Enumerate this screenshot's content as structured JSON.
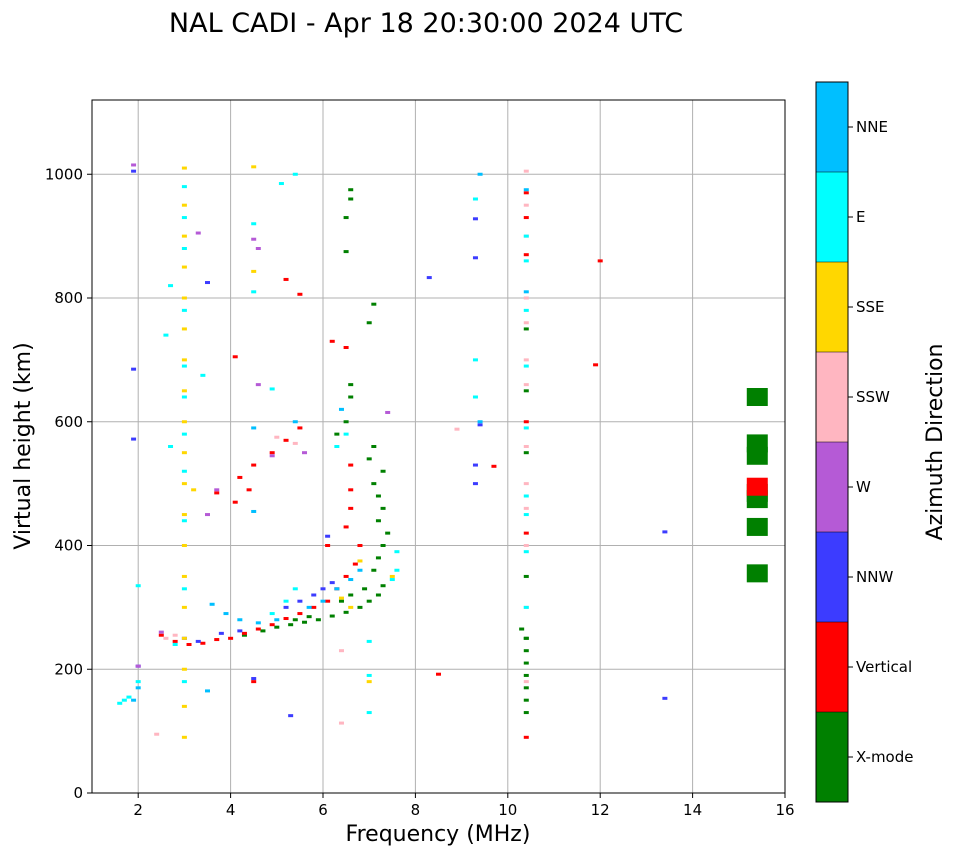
{
  "chart_data": {
    "type": "scatter",
    "title": "NAL CADI - Apr 18 20:30:00 2024 UTC",
    "xlabel": "Frequency (MHz)",
    "ylabel": "Virtual height (km)",
    "xlim": [
      1,
      16
    ],
    "ylim": [
      0,
      1120
    ],
    "xticks": [
      2,
      4,
      6,
      8,
      10,
      12,
      14,
      16
    ],
    "yticks": [
      0,
      200,
      400,
      600,
      800,
      1000
    ],
    "grid": true,
    "colorbar": {
      "label": "Azimuth Direction",
      "categories": [
        {
          "name": "X-mode",
          "color": "#008000"
        },
        {
          "name": "Vertical",
          "color": "#ff0000"
        },
        {
          "name": "NNW",
          "color": "#3c3cff"
        },
        {
          "name": "W",
          "color": "#b55ad6"
        },
        {
          "name": "SSW",
          "color": "#ffb6c1"
        },
        {
          "name": "SSE",
          "color": "#ffd700"
        },
        {
          "name": "E",
          "color": "#00ffff"
        },
        {
          "name": "NNE",
          "color": "#00bfff"
        }
      ]
    },
    "series": [
      {
        "name": "X-mode",
        "points": [
          [
            4.3,
            255
          ],
          [
            4.7,
            262
          ],
          [
            5.0,
            268
          ],
          [
            5.3,
            272
          ],
          [
            5.6,
            276
          ],
          [
            5.9,
            280
          ],
          [
            6.2,
            286
          ],
          [
            6.5,
            292
          ],
          [
            6.8,
            300
          ],
          [
            7.0,
            310
          ],
          [
            7.2,
            320
          ],
          [
            7.3,
            335
          ],
          [
            6.9,
            330
          ],
          [
            6.6,
            320
          ],
          [
            7.1,
            360
          ],
          [
            7.2,
            380
          ],
          [
            7.3,
            400
          ],
          [
            7.4,
            420
          ],
          [
            7.2,
            440
          ],
          [
            7.3,
            460
          ],
          [
            7.2,
            480
          ],
          [
            7.1,
            500
          ],
          [
            7.3,
            520
          ],
          [
            7.0,
            540
          ],
          [
            7.1,
            560
          ],
          [
            6.5,
            600
          ],
          [
            6.6,
            640
          ],
          [
            6.6,
            660
          ],
          [
            6.3,
            580
          ],
          [
            7.0,
            760
          ],
          [
            7.1,
            790
          ],
          [
            6.5,
            930
          ],
          [
            6.6,
            960
          ],
          [
            6.6,
            975
          ],
          [
            6.5,
            875
          ],
          [
            10.3,
            265
          ],
          [
            10.4,
            250
          ],
          [
            10.4,
            230
          ],
          [
            10.4,
            210
          ],
          [
            10.4,
            190
          ],
          [
            10.4,
            170
          ],
          [
            10.4,
            150
          ],
          [
            10.4,
            130
          ],
          [
            10.4,
            250
          ],
          [
            10.4,
            350
          ],
          [
            10.4,
            550
          ],
          [
            10.4,
            650
          ],
          [
            10.4,
            750
          ],
          [
            5.7,
            285
          ],
          [
            5.4,
            280
          ],
          [
            6.4,
            310
          ],
          [
            15.4,
            355
          ],
          [
            15.4,
            430
          ],
          [
            15.4,
            475
          ],
          [
            15.4,
            485
          ],
          [
            15.4,
            545
          ],
          [
            15.4,
            565
          ],
          [
            15.4,
            640
          ]
        ]
      },
      {
        "name": "Vertical",
        "points": [
          [
            2.5,
            255
          ],
          [
            2.8,
            245
          ],
          [
            3.1,
            240
          ],
          [
            3.4,
            242
          ],
          [
            3.7,
            248
          ],
          [
            4.0,
            250
          ],
          [
            4.3,
            258
          ],
          [
            4.6,
            265
          ],
          [
            4.9,
            272
          ],
          [
            5.2,
            282
          ],
          [
            5.5,
            290
          ],
          [
            5.8,
            300
          ],
          [
            6.1,
            310
          ],
          [
            6.3,
            330
          ],
          [
            6.5,
            350
          ],
          [
            6.7,
            370
          ],
          [
            6.8,
            400
          ],
          [
            6.5,
            430
          ],
          [
            6.6,
            460
          ],
          [
            6.6,
            490
          ],
          [
            6.6,
            530
          ],
          [
            6.1,
            400
          ],
          [
            5.5,
            590
          ],
          [
            5.2,
            570
          ],
          [
            4.9,
            550
          ],
          [
            4.5,
            530
          ],
          [
            4.2,
            510
          ],
          [
            4.1,
            470
          ],
          [
            3.7,
            485
          ],
          [
            4.4,
            490
          ],
          [
            6.5,
            720
          ],
          [
            6.2,
            730
          ],
          [
            4.1,
            705
          ],
          [
            4.5,
            180
          ],
          [
            8.5,
            192
          ],
          [
            9.7,
            528
          ],
          [
            10.4,
            90
          ],
          [
            10.4,
            420
          ],
          [
            10.4,
            600
          ],
          [
            10.4,
            870
          ],
          [
            10.4,
            930
          ],
          [
            10.4,
            970
          ],
          [
            11.9,
            692
          ],
          [
            12.0,
            860
          ],
          [
            5.5,
            806
          ],
          [
            5.2,
            830
          ],
          [
            15.4,
            495
          ]
        ]
      },
      {
        "name": "NNW",
        "points": [
          [
            3.0,
            250
          ],
          [
            3.3,
            245
          ],
          [
            3.8,
            258
          ],
          [
            4.2,
            262
          ],
          [
            5.2,
            300
          ],
          [
            5.5,
            310
          ],
          [
            5.8,
            320
          ],
          [
            6.0,
            330
          ],
          [
            6.2,
            340
          ],
          [
            6.1,
            415
          ],
          [
            9.3,
            500
          ],
          [
            9.3,
            530
          ],
          [
            9.4,
            595
          ],
          [
            9.3,
            865
          ],
          [
            9.3,
            928
          ],
          [
            8.3,
            833
          ],
          [
            13.4,
            422
          ],
          [
            13.4,
            153
          ],
          [
            5.3,
            125
          ],
          [
            1.9,
            572
          ],
          [
            1.9,
            685
          ],
          [
            1.9,
            1005
          ],
          [
            3.5,
            825
          ],
          [
            4.5,
            185
          ],
          [
            2.0,
            205
          ]
        ]
      },
      {
        "name": "W",
        "points": [
          [
            2.5,
            260
          ],
          [
            3.7,
            490
          ],
          [
            3.5,
            450
          ],
          [
            4.6,
            660
          ],
          [
            4.6,
            880
          ],
          [
            4.5,
            895
          ],
          [
            4.9,
            545
          ],
          [
            5.6,
            550
          ],
          [
            7.4,
            615
          ],
          [
            3.3,
            905
          ],
          [
            2.0,
            205
          ],
          [
            1.9,
            1015
          ]
        ]
      },
      {
        "name": "SSW",
        "points": [
          [
            2.6,
            250
          ],
          [
            2.8,
            255
          ],
          [
            2.4,
            95
          ],
          [
            6.4,
            113
          ],
          [
            6.4,
            230
          ],
          [
            8.9,
            588
          ],
          [
            10.4,
            180
          ],
          [
            10.4,
            300
          ],
          [
            10.4,
            400
          ],
          [
            10.4,
            500
          ],
          [
            10.4,
            700
          ],
          [
            10.4,
            800
          ],
          [
            10.4,
            900
          ],
          [
            10.4,
            950
          ],
          [
            10.4,
            1005
          ],
          [
            10.4,
            460
          ],
          [
            10.4,
            560
          ],
          [
            10.4,
            660
          ],
          [
            10.4,
            760
          ],
          [
            5.4,
            565
          ],
          [
            5.0,
            575
          ]
        ]
      },
      {
        "name": "SSE",
        "points": [
          [
            3.0,
            90
          ],
          [
            3.0,
            140
          ],
          [
            3.0,
            200
          ],
          [
            3.0,
            250
          ],
          [
            3.0,
            300
          ],
          [
            3.0,
            350
          ],
          [
            3.0,
            400
          ],
          [
            3.0,
            450
          ],
          [
            3.0,
            500
          ],
          [
            3.0,
            550
          ],
          [
            3.0,
            600
          ],
          [
            3.0,
            650
          ],
          [
            3.0,
            700
          ],
          [
            3.0,
            750
          ],
          [
            3.0,
            800
          ],
          [
            3.0,
            850
          ],
          [
            3.0,
            900
          ],
          [
            3.0,
            950
          ],
          [
            3.0,
            1010
          ],
          [
            3.2,
            490
          ],
          [
            4.5,
            1012
          ],
          [
            4.5,
            843
          ],
          [
            6.4,
            315
          ],
          [
            6.6,
            300
          ],
          [
            7.0,
            180
          ],
          [
            7.5,
            350
          ],
          [
            6.8,
            375
          ]
        ]
      },
      {
        "name": "E",
        "points": [
          [
            1.6,
            145
          ],
          [
            1.7,
            150
          ],
          [
            1.8,
            155
          ],
          [
            2.0,
            180
          ],
          [
            2.0,
            335
          ],
          [
            2.7,
            820
          ],
          [
            2.6,
            740
          ],
          [
            2.7,
            560
          ],
          [
            3.0,
            180
          ],
          [
            3.0,
            330
          ],
          [
            3.0,
            440
          ],
          [
            3.0,
            520
          ],
          [
            3.0,
            580
          ],
          [
            3.0,
            640
          ],
          [
            3.0,
            690
          ],
          [
            3.0,
            780
          ],
          [
            3.0,
            880
          ],
          [
            3.0,
            930
          ],
          [
            3.0,
            980
          ],
          [
            7.0,
            130
          ],
          [
            7.0,
            190
          ],
          [
            7.0,
            245
          ],
          [
            6.3,
            560
          ],
          [
            6.5,
            580
          ],
          [
            7.5,
            345
          ],
          [
            7.6,
            360
          ],
          [
            7.6,
            390
          ],
          [
            9.3,
            640
          ],
          [
            9.3,
            700
          ],
          [
            9.3,
            960
          ],
          [
            10.4,
            300
          ],
          [
            10.4,
            390
          ],
          [
            10.4,
            450
          ],
          [
            10.4,
            480
          ],
          [
            10.4,
            590
          ],
          [
            10.4,
            690
          ],
          [
            10.4,
            780
          ],
          [
            10.4,
            860
          ],
          [
            10.4,
            900
          ],
          [
            5.4,
            330
          ],
          [
            5.2,
            310
          ],
          [
            4.9,
            290
          ],
          [
            2.8,
            240
          ],
          [
            5.4,
            1000
          ],
          [
            5.1,
            985
          ],
          [
            4.9,
            653
          ],
          [
            3.4,
            675
          ],
          [
            4.5,
            920
          ],
          [
            4.5,
            810
          ]
        ]
      },
      {
        "name": "NNE",
        "points": [
          [
            3.6,
            305
          ],
          [
            3.9,
            290
          ],
          [
            4.2,
            280
          ],
          [
            4.6,
            275
          ],
          [
            5.0,
            280
          ],
          [
            5.7,
            300
          ],
          [
            6.0,
            310
          ],
          [
            6.3,
            330
          ],
          [
            6.6,
            345
          ],
          [
            6.8,
            360
          ],
          [
            6.4,
            620
          ],
          [
            4.5,
            590
          ],
          [
            4.5,
            455
          ],
          [
            5.4,
            600
          ],
          [
            9.4,
            1000
          ],
          [
            9.4,
            600
          ],
          [
            10.4,
            810
          ],
          [
            10.4,
            975
          ],
          [
            3.5,
            165
          ],
          [
            2.0,
            170
          ],
          [
            1.9,
            150
          ]
        ]
      }
    ]
  }
}
